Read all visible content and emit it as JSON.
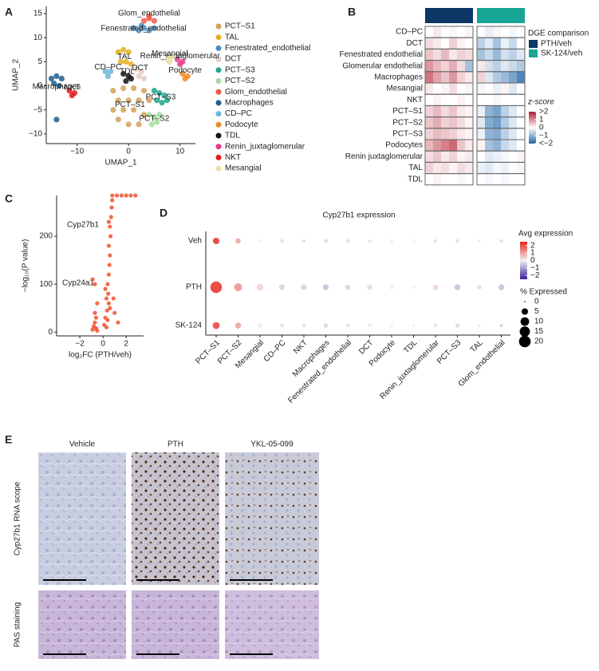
{
  "panel_labels": [
    "A",
    "B",
    "C",
    "D",
    "E"
  ],
  "chart_data": [
    {
      "type": "scatter",
      "x_label": "UMAP_1",
      "y_label": "UMAP_2",
      "xlim": [
        -16,
        13
      ],
      "ylim": [
        -12,
        16.5
      ],
      "xticks": [
        {
          "value": -10,
          "label": "−10"
        },
        0,
        10
      ],
      "yticks": [
        15,
        10,
        5,
        0,
        {
          "value": -5,
          "label": "−5"
        },
        {
          "value": -10,
          "label": "−10"
        }
      ],
      "series": [
        {
          "name": "PCT–S1",
          "color": "#d2a258",
          "x": [
            -3,
            -1,
            1,
            3,
            -2,
            0,
            2,
            4,
            -3,
            -1,
            1,
            3,
            0,
            2,
            -2
          ],
          "y": [
            -1,
            -0.5,
            -0.5,
            -1,
            -3,
            -3,
            -3,
            -3,
            -5,
            -5,
            -5,
            -6,
            -8,
            -8,
            -7
          ]
        },
        {
          "name": "TAL",
          "color": "#e3b020",
          "x": [
            -2,
            -1,
            0,
            -1.5,
            -0.5,
            0.5
          ],
          "y": [
            7,
            7.5,
            7,
            5,
            5,
            4.5
          ]
        },
        {
          "name": "Fenestrated_endothelial",
          "color": "#4a8cc2",
          "x": [
            1,
            2,
            3,
            4,
            5,
            2.5
          ],
          "y": [
            12,
            11.5,
            12,
            11.5,
            12,
            12.5
          ]
        },
        {
          "name": "DCT",
          "color": "#e5cbc2",
          "x": [
            1.5,
            2.5,
            2,
            3
          ],
          "y": [
            3.5,
            3,
            2,
            1.5
          ]
        },
        {
          "name": "PCT–S3",
          "color": "#1fa58a",
          "x": [
            5,
            6,
            7,
            5.5,
            6.5,
            7.5
          ],
          "y": [
            -1,
            -1.5,
            -2,
            -3,
            -3.5,
            -3
          ]
        },
        {
          "name": "PCT–S2",
          "color": "#a3dc9c",
          "x": [
            4,
            5,
            6,
            4.5,
            5.5
          ],
          "y": [
            -6,
            -6.5,
            -6,
            -8,
            -7.5
          ]
        },
        {
          "name": "Glom_endothelial",
          "color": "#ea5a4a",
          "x": [
            3,
            4,
            5,
            4
          ],
          "y": [
            13.5,
            14,
            13.5,
            14.5
          ]
        },
        {
          "name": "Macrophages",
          "color": "#1c5f8c",
          "x": [
            -15,
            -14,
            -13,
            -14.5,
            -13.5,
            -14
          ],
          "y": [
            1.5,
            2,
            1.5,
            0.5,
            0,
            -7
          ]
        },
        {
          "name": "CD–PC",
          "color": "#6cb8d8",
          "x": [
            -4.5,
            -3.5,
            -4
          ],
          "y": [
            3,
            3,
            2
          ]
        },
        {
          "name": "Podocyte",
          "color": "#f08a24",
          "x": [
            10.5,
            11.5,
            11
          ],
          "y": [
            2.5,
            2,
            1.5
          ]
        },
        {
          "name": "TDL",
          "color": "#111111",
          "x": [
            -1,
            0,
            -0.5,
            0.5
          ],
          "y": [
            2.5,
            2,
            1,
            1.5
          ]
        },
        {
          "name": "Renin_juxtaglomerular",
          "color": "#e5378c",
          "x": [
            9.5,
            10.5,
            10
          ],
          "y": [
            5.5,
            5,
            4.5
          ]
        },
        {
          "name": "NKT",
          "color": "#e31a1c",
          "x": [
            -11.5,
            -10.5,
            -11
          ],
          "y": [
            -1,
            -1.5,
            -2
          ]
        },
        {
          "name": "Mesangial",
          "color": "#ece0a6",
          "x": [
            7.5,
            8.5,
            8
          ],
          "y": [
            5.5,
            6,
            5
          ]
        }
      ]
    },
    {
      "type": "heatmap",
      "rows": [
        "CD–PC",
        "DCT",
        "Fenestrated endothelial",
        "Glomerular endothelial",
        "Macrophages",
        "Mesangial",
        "NKT",
        "PCT–S1",
        "PCT–S2",
        "PCT–S3",
        "Podocytes",
        "Renin juxtaglomerular",
        "TAL",
        "TDL"
      ],
      "groups": [
        {
          "name": "PTH/veh",
          "color": "#0c3766"
        },
        {
          "name": "SK-124/veh",
          "color": "#17a595"
        }
      ],
      "legend_title": "DGE comparison",
      "colorbar_title": "z-score",
      "zlim": [
        -2,
        2
      ],
      "colors": [
        "#2166ac",
        "#ffffff",
        "#b2182b"
      ],
      "zticks": [
        {
          "value": 2,
          "label": ">2"
        },
        1,
        0,
        {
          "value": -1,
          "label": "−1"
        },
        {
          "value": -2,
          "label": "<−2"
        }
      ],
      "values": [
        [
          0,
          0.2,
          0,
          -0.1,
          0,
          0.1,
          0,
          -0.2,
          0.1,
          0,
          -0.1,
          0
        ],
        [
          0.3,
          0.2,
          0,
          0.4,
          0.1,
          0,
          -0.6,
          -0.3,
          -0.8,
          -0.2,
          -0.5,
          0
        ],
        [
          0.5,
          0.3,
          0.6,
          0.2,
          0.4,
          0.3,
          -0.8,
          -0.5,
          -0.9,
          -0.4,
          -0.6,
          -0.3
        ],
        [
          0.9,
          0.6,
          0.4,
          0.7,
          0.3,
          -0.8,
          0.2,
          -0.4,
          -0.6,
          -0.3,
          -0.5,
          -0.7
        ],
        [
          1.2,
          0.8,
          0.5,
          0.9,
          0.4,
          0.2,
          0.4,
          -0.3,
          -0.7,
          -0.9,
          -1.2,
          -1.6
        ],
        [
          0.2,
          0,
          0.1,
          0.3,
          0,
          0.1,
          -0.1,
          0,
          -0.2,
          0.1,
          -0.3,
          0
        ],
        [
          0,
          0.1,
          0,
          0,
          0.1,
          0,
          0,
          0,
          -0.1,
          0,
          0,
          0
        ],
        [
          0.4,
          0.6,
          0.3,
          0.5,
          0.2,
          0.1,
          -0.2,
          -1,
          -1.2,
          -0.6,
          -0.3,
          0
        ],
        [
          0.5,
          0.7,
          0.4,
          0.5,
          0.3,
          0.1,
          -0.3,
          -1.1,
          -1.3,
          -0.7,
          -0.3,
          0
        ],
        [
          0.4,
          0.6,
          0.5,
          0.4,
          0.2,
          0.1,
          -0.2,
          -1,
          -1.1,
          -0.6,
          -0.3,
          0
        ],
        [
          0.6,
          0.9,
          1.1,
          1.3,
          0.5,
          0.2,
          0.1,
          -0.8,
          -1,
          -0.5,
          -0.3,
          0
        ],
        [
          0.3,
          0.5,
          0.2,
          0.4,
          0.1,
          0.2,
          0,
          -0.3,
          -0.2,
          -0.1,
          0,
          0.1
        ],
        [
          0.4,
          0.2,
          0.3,
          0.1,
          0.3,
          0.2,
          -0.2,
          -0.3,
          -0.1,
          -0.2,
          0,
          -0.1
        ],
        [
          0,
          0.1,
          0,
          0,
          -0.1,
          0,
          0,
          -0.1,
          0,
          -0.1,
          0,
          0
        ]
      ]
    },
    {
      "type": "scatter",
      "x_label": "log₂FC (PTH/veh)",
      "y_label": "−log₁₀(P value)",
      "xlim": [
        -4,
        3.5
      ],
      "ylim": [
        -8,
        285
      ],
      "xticks": [
        {
          "value": -2,
          "label": "−2"
        },
        0,
        2
      ],
      "yticks": [
        0,
        100,
        200
      ],
      "annotations": [
        "Cyp27b1",
        "Cyp24a1"
      ],
      "series": [
        {
          "color": "#f0522d",
          "x": [
            -0.9,
            -0.8,
            -0.7,
            -0.6,
            -0.5,
            -0.6,
            -0.7,
            -0.5,
            -0.9,
            -0.7,
            0.3,
            0.4,
            0.35,
            0.5,
            0.45,
            0.4,
            0.5,
            0.55,
            0.6,
            0.5,
            0.65,
            0.6,
            0.5,
            0.7,
            0.75,
            0.8,
            0.1,
            0.2,
            0.6,
            0.9,
            1,
            1.3,
            0.3,
            0.2,
            0.8,
            1.2,
            1.6,
            2,
            2.4,
            2.8
          ],
          "y": [
            5,
            12,
            20,
            8,
            3,
            30,
            40,
            60,
            110,
            100,
            10,
            25,
            45,
            60,
            80,
            100,
            120,
            140,
            160,
            180,
            200,
            220,
            230,
            240,
            260,
            275,
            15,
            30,
            50,
            70,
            40,
            20,
            70,
            90,
            285,
            285,
            285,
            285,
            285,
            285
          ]
        }
      ]
    },
    {
      "type": "dot",
      "title": "Cyp27b1 expression",
      "rows": [
        "Veh",
        "PTH",
        "SK-124"
      ],
      "categories": [
        "PCT–S1",
        "PCT–S2",
        "Mesangial",
        "CD–PC",
        "NKT",
        "Macrophages",
        "Fenestrated_endothelial",
        "DCT",
        "Podocyte",
        "TDL",
        "Renin_juxtaglomerular",
        "PCT–S3",
        "TAL",
        "Glom_endothelial"
      ],
      "values": [
        [
          2,
          0.8,
          0,
          -0.2,
          -0.2,
          -0.3,
          -0.2,
          -0.1,
          0,
          0,
          0.2,
          -0.2,
          -0.1,
          -0.2
        ],
        [
          2,
          1,
          0.3,
          -0.3,
          -0.3,
          -0.5,
          -0.3,
          -0.2,
          0,
          0,
          0.3,
          -0.5,
          -0.2,
          -0.5
        ],
        [
          1.8,
          0.8,
          0.1,
          -0.2,
          -0.2,
          -0.3,
          -0.2,
          -0.1,
          0,
          0,
          0.2,
          -0.3,
          -0.1,
          -0.3
        ]
      ],
      "sizes": [
        [
          5,
          3,
          1,
          1,
          1,
          1,
          1,
          1,
          1,
          0.5,
          1,
          1,
          0.5,
          1
        ],
        [
          20,
          8,
          6,
          4,
          4,
          4,
          3,
          3,
          2,
          1,
          3,
          4,
          2,
          4
        ],
        [
          6,
          4,
          1.5,
          1,
          1,
          1.5,
          1,
          1,
          1,
          0.5,
          1,
          1.5,
          0.5,
          1
        ]
      ],
      "colorbar_title": "Avg expression",
      "clim": [
        -2.5,
        2.5
      ],
      "colors": [
        "#3a1f99",
        "#f2f2f2",
        "#e8251b"
      ],
      "cticks": [
        2,
        1,
        0,
        {
          "value": -1,
          "label": "−1"
        },
        {
          "value": -2,
          "label": "−2"
        }
      ],
      "size_title": "% Expressed",
      "size_ticks": [
        0,
        5,
        10,
        15,
        20
      ]
    }
  ],
  "panel_e": {
    "columns": [
      "Vehicle",
      "PTH",
      "YKL-05-099"
    ],
    "rows": [
      "Cyp27b1 RNA scope",
      "PAS staining"
    ]
  }
}
